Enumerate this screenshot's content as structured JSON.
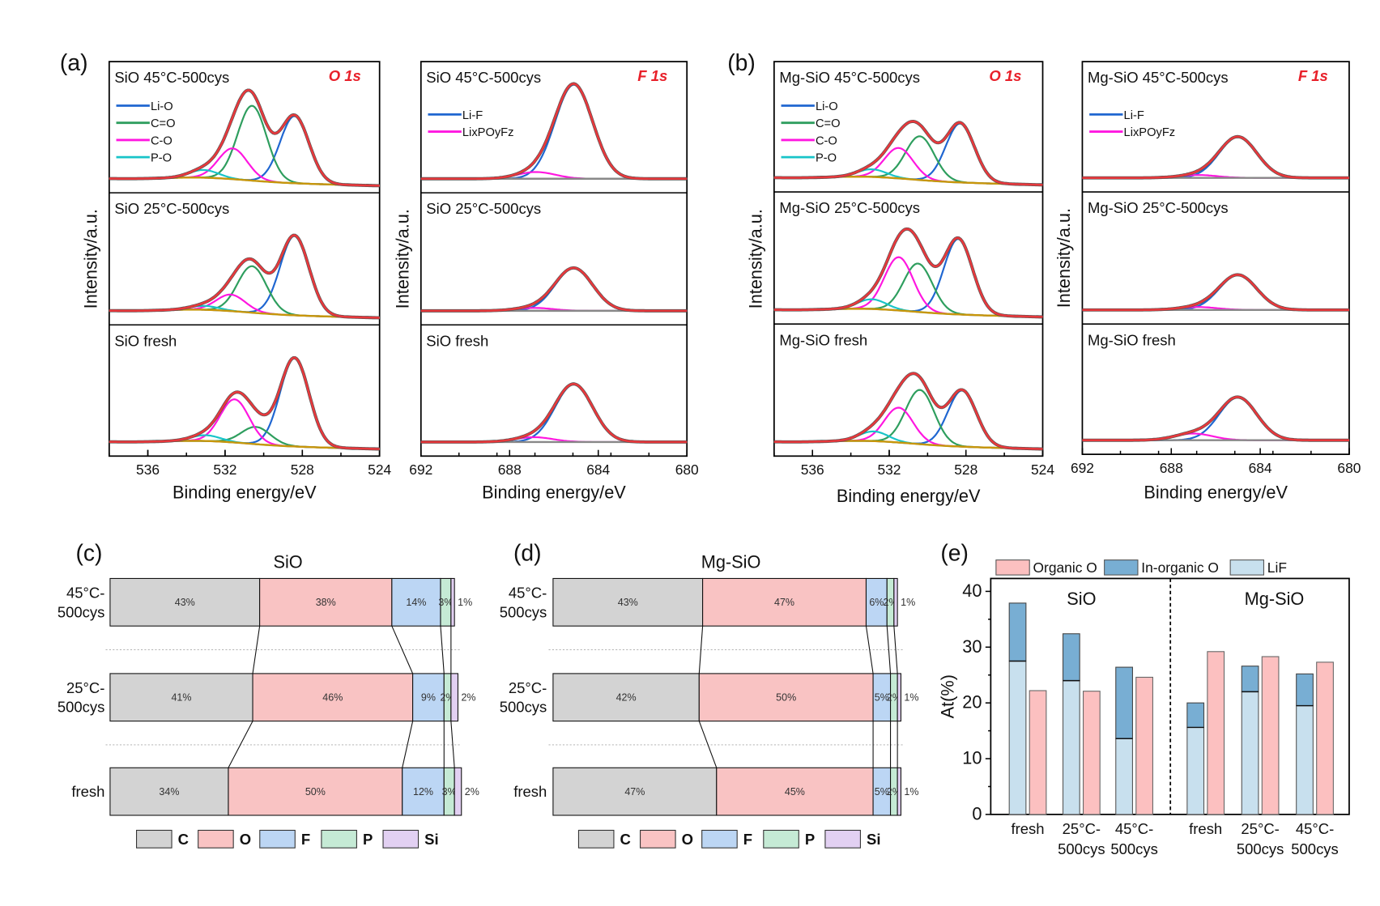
{
  "figure": {
    "panel_labels": [
      "(a)",
      "(b)",
      "(c)",
      "(d)",
      "(e)"
    ]
  },
  "chart_data": [
    {
      "id": "a_O1s",
      "type": "line",
      "panel": "(a)",
      "title": "O 1s",
      "xlabel": "Binding energy/eV",
      "ylabel": "Intensity/a.u.",
      "xlim": [
        538,
        524
      ],
      "xticks": [
        "536",
        "532",
        "528",
        "524"
      ],
      "legend": [
        "Li-O",
        "C=O",
        "C-O",
        "P-O"
      ],
      "colors": {
        "Li-O": "#1f66d1",
        "C=O": "#2e9e5e",
        "C-O": "#ff16e0",
        "P-O": "#18c4c8",
        "envelope": "#e8383c",
        "background": "#c8960a"
      },
      "subplots": [
        {
          "label": "SiO 45°C-500cys",
          "peaks": [
            {
              "name": "Li-O",
              "center": 528.4,
              "height": 0.7
            },
            {
              "name": "C=O",
              "center": 530.6,
              "height": 0.78
            },
            {
              "name": "C-O",
              "center": 531.6,
              "height": 0.32
            },
            {
              "name": "P-O",
              "center": 533.1,
              "height": 0.08
            }
          ]
        },
        {
          "label": "SiO 25°C-500cys",
          "peaks": [
            {
              "name": "Li-O",
              "center": 528.4,
              "height": 0.82
            },
            {
              "name": "C=O",
              "center": 530.6,
              "height": 0.48
            },
            {
              "name": "C-O",
              "center": 531.7,
              "height": 0.17
            },
            {
              "name": "P-O",
              "center": 533.1,
              "height": 0.04
            }
          ]
        },
        {
          "label": "SiO fresh",
          "peaks": [
            {
              "name": "Li-O",
              "center": 528.4,
              "height": 0.92
            },
            {
              "name": "C=O",
              "center": 530.4,
              "height": 0.18
            },
            {
              "name": "C-O",
              "center": 531.5,
              "height": 0.45
            },
            {
              "name": "P-O",
              "center": 533.0,
              "height": 0.06
            }
          ]
        }
      ]
    },
    {
      "id": "a_F1s",
      "type": "line",
      "panel": "(a)",
      "title": "F 1s",
      "xlabel": "Binding energy/eV",
      "ylabel": "Intensity/a.u.",
      "xlim": [
        692,
        680
      ],
      "xticks": [
        "692",
        "688",
        "684",
        "680"
      ],
      "legend": [
        "Li-F",
        "LixPOyFz"
      ],
      "subplots": [
        {
          "label": "SiO 45°C-500cys",
          "peaks": [
            {
              "name": "Li-F",
              "center": 685.1,
              "height": 0.98
            },
            {
              "name": "LixPOyFz",
              "center": 686.8,
              "height": 0.07
            }
          ]
        },
        {
          "label": "SiO 25°C-500cys",
          "peaks": [
            {
              "name": "Li-F",
              "center": 685.1,
              "height": 0.44
            },
            {
              "name": "LixPOyFz",
              "center": 686.9,
              "height": 0.03
            }
          ]
        },
        {
          "label": "SiO fresh",
          "peaks": [
            {
              "name": "Li-F",
              "center": 685.1,
              "height": 0.6
            },
            {
              "name": "LixPOyFz",
              "center": 686.9,
              "height": 0.05
            }
          ]
        }
      ]
    },
    {
      "id": "b_O1s",
      "type": "line",
      "panel": "(b)",
      "title": "O 1s",
      "xlabel": "Binding energy/eV",
      "ylabel": "Intensity/a.u.",
      "xlim": [
        538,
        524
      ],
      "xticks": [
        "536",
        "532",
        "528",
        "524"
      ],
      "legend": [
        "Li-O",
        "C=O",
        "C-O",
        "P-O"
      ],
      "subplots": [
        {
          "label": "Mg-SiO 45°C-500cys",
          "peaks": [
            {
              "name": "Li-O",
              "center": 528.3,
              "height": 0.62
            },
            {
              "name": "C=O",
              "center": 530.4,
              "height": 0.46
            },
            {
              "name": "C-O",
              "center": 531.5,
              "height": 0.32
            },
            {
              "name": "P-O",
              "center": 532.9,
              "height": 0.08
            }
          ]
        },
        {
          "label": "Mg-SiO 25°C-500cys",
          "peaks": [
            {
              "name": "Li-O",
              "center": 528.4,
              "height": 0.78
            },
            {
              "name": "C=O",
              "center": 530.5,
              "height": 0.5
            },
            {
              "name": "C-O",
              "center": 531.5,
              "height": 0.55
            },
            {
              "name": "P-O",
              "center": 532.9,
              "height": 0.1
            }
          ]
        },
        {
          "label": "Mg-SiO fresh",
          "peaks": [
            {
              "name": "Li-O",
              "center": 528.2,
              "height": 0.58
            },
            {
              "name": "C=O",
              "center": 530.4,
              "height": 0.56
            },
            {
              "name": "C-O",
              "center": 531.5,
              "height": 0.36
            },
            {
              "name": "P-O",
              "center": 532.8,
              "height": 0.1
            }
          ]
        }
      ]
    },
    {
      "id": "b_F1s",
      "type": "line",
      "panel": "(b)",
      "title": "F 1s",
      "xlabel": "Binding energy/eV",
      "ylabel": "Intensity/a.u.",
      "xlim": [
        692,
        680
      ],
      "xticks": [
        "692",
        "688",
        "684",
        "680"
      ],
      "legend": [
        "Li-F",
        "LixPOyFz"
      ],
      "subplots": [
        {
          "label": "Mg-SiO 45°C-500cys",
          "peaks": [
            {
              "name": "Li-F",
              "center": 685.0,
              "height": 0.43
            },
            {
              "name": "LixPOyFz",
              "center": 686.8,
              "height": 0.03
            }
          ]
        },
        {
          "label": "Mg-SiO 25°C-500cys",
          "peaks": [
            {
              "name": "Li-F",
              "center": 685.0,
              "height": 0.36
            },
            {
              "name": "LixPOyFz",
              "center": 686.8,
              "height": 0.03
            }
          ]
        },
        {
          "label": "Mg-SiO fresh",
          "peaks": [
            {
              "name": "Li-F",
              "center": 685.0,
              "height": 0.45
            },
            {
              "name": "LixPOyFz",
              "center": 687.0,
              "height": 0.07
            }
          ]
        }
      ]
    },
    {
      "id": "c",
      "type": "bar",
      "orientation": "horizontal-stacked-100",
      "panel": "(c)",
      "title": "SiO",
      "categories": [
        "45°C-500cys",
        "25°C-500cys",
        "fresh"
      ],
      "category_lines": [
        [
          "45°C-",
          "500cys"
        ],
        [
          "25°C-",
          "500cys"
        ],
        [
          "fresh"
        ]
      ],
      "series": [
        {
          "name": "C",
          "color": "#d3d3d3",
          "values": [
            43,
            41,
            34
          ]
        },
        {
          "name": "O",
          "color": "#f9c3c3",
          "values": [
            38,
            46,
            50
          ]
        },
        {
          "name": "F",
          "color": "#bcd6f4",
          "values": [
            14,
            9,
            12
          ]
        },
        {
          "name": "P",
          "color": "#c5ead5",
          "values": [
            3,
            2,
            3
          ]
        },
        {
          "name": "Si",
          "color": "#e2d0f2",
          "values": [
            1,
            2,
            2
          ]
        }
      ]
    },
    {
      "id": "d",
      "type": "bar",
      "orientation": "horizontal-stacked-100",
      "panel": "(d)",
      "title": "Mg-SiO",
      "categories": [
        "45°C-500cys",
        "25°C-500cys",
        "fresh"
      ],
      "category_lines": [
        [
          "45°C-",
          "500cys"
        ],
        [
          "25°C-",
          "500cys"
        ],
        [
          "fresh"
        ]
      ],
      "series": [
        {
          "name": "C",
          "color": "#d3d3d3",
          "values": [
            43,
            42,
            47
          ]
        },
        {
          "name": "O",
          "color": "#f9c3c3",
          "values": [
            47,
            50,
            45
          ]
        },
        {
          "name": "F",
          "color": "#bcd6f4",
          "values": [
            6,
            5,
            5
          ]
        },
        {
          "name": "P",
          "color": "#c5ead5",
          "values": [
            2,
            2,
            2
          ]
        },
        {
          "name": "Si",
          "color": "#e2d0f2",
          "values": [
            1,
            1,
            1
          ]
        }
      ]
    },
    {
      "id": "e",
      "type": "bar",
      "panel": "(e)",
      "title": "",
      "ylabel": "At(%)",
      "xlabel": "",
      "ylim": [
        0,
        42
      ],
      "yticks": [
        "0",
        "10",
        "20",
        "30",
        "40"
      ],
      "groups": [
        "SiO",
        "Mg-SiO"
      ],
      "categories": [
        "fresh",
        "25°C-500cys",
        "45°C-500cys",
        "fresh",
        "25°C-500cys",
        "45°C-500cys"
      ],
      "category_lines": [
        [
          "fresh"
        ],
        [
          "25°C-",
          "500cys"
        ],
        [
          "45°C-",
          "500cys"
        ],
        [
          "fresh"
        ],
        [
          "25°C-",
          "500cys"
        ],
        [
          "45°C-",
          "500cys"
        ]
      ],
      "legend": [
        "Organic O",
        "In-organic O",
        "LiF"
      ],
      "colors": {
        "Organic O": "#fcc0c0",
        "In-organic O": "#78aed3",
        "LiF": "#c8e0ee"
      },
      "series": [
        {
          "name": "LiF",
          "stack": "inorganic",
          "values": [
            27.5,
            24.0,
            13.6,
            15.6,
            22.0,
            19.5
          ]
        },
        {
          "name": "In-organic O",
          "stack": "inorganic",
          "values": [
            10.4,
            8.4,
            12.8,
            4.4,
            4.6,
            5.7
          ]
        },
        {
          "name": "Organic O",
          "stack": "organic",
          "values": [
            22.2,
            22.1,
            24.6,
            29.2,
            28.3,
            27.3
          ]
        }
      ]
    }
  ]
}
